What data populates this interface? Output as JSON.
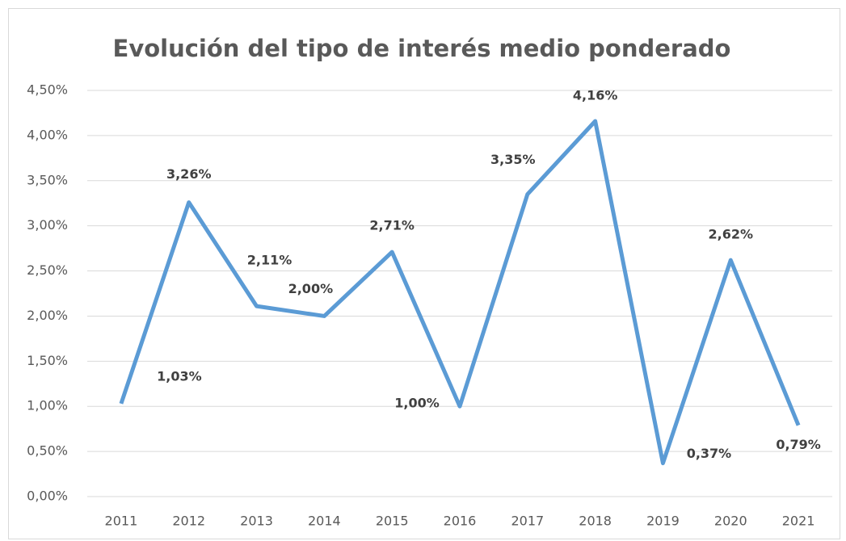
{
  "chart_data": {
    "type": "line",
    "title": "Evolución del tipo de interés medio ponderado",
    "categories": [
      "2011",
      "2012",
      "2013",
      "2014",
      "2015",
      "2016",
      "2017",
      "2018",
      "2019",
      "2020",
      "2021"
    ],
    "series": [
      {
        "name": "Tipo de interés medio ponderado",
        "color": "#5b9bd5",
        "values": [
          1.03,
          3.26,
          2.11,
          2.0,
          2.71,
          1.0,
          3.35,
          4.16,
          0.37,
          2.62,
          0.79
        ],
        "value_labels": [
          "1,03%",
          "3,26%",
          "2,11%",
          "2,00%",
          "2,71%",
          "1,00%",
          "3,35%",
          "4,16%",
          "0,37%",
          "2,62%",
          "0,79%"
        ]
      }
    ],
    "ylim": [
      0,
      4.5
    ],
    "yticks": [
      {
        "value": 0,
        "label": "0,00%"
      },
      {
        "value": 0.5,
        "label": "0,50%"
      },
      {
        "value": 1,
        "label": "1,00%"
      },
      {
        "value": 1.5,
        "label": "1,50%"
      },
      {
        "value": 2,
        "label": "2,00%"
      },
      {
        "value": 2.5,
        "label": "2,50%"
      },
      {
        "value": 3,
        "label": "3,00%"
      },
      {
        "value": 3.5,
        "label": "3,50%"
      },
      {
        "value": 4,
        "label": "4,00%"
      },
      {
        "value": 4.5,
        "label": "4,50%"
      }
    ],
    "grid": true
  }
}
